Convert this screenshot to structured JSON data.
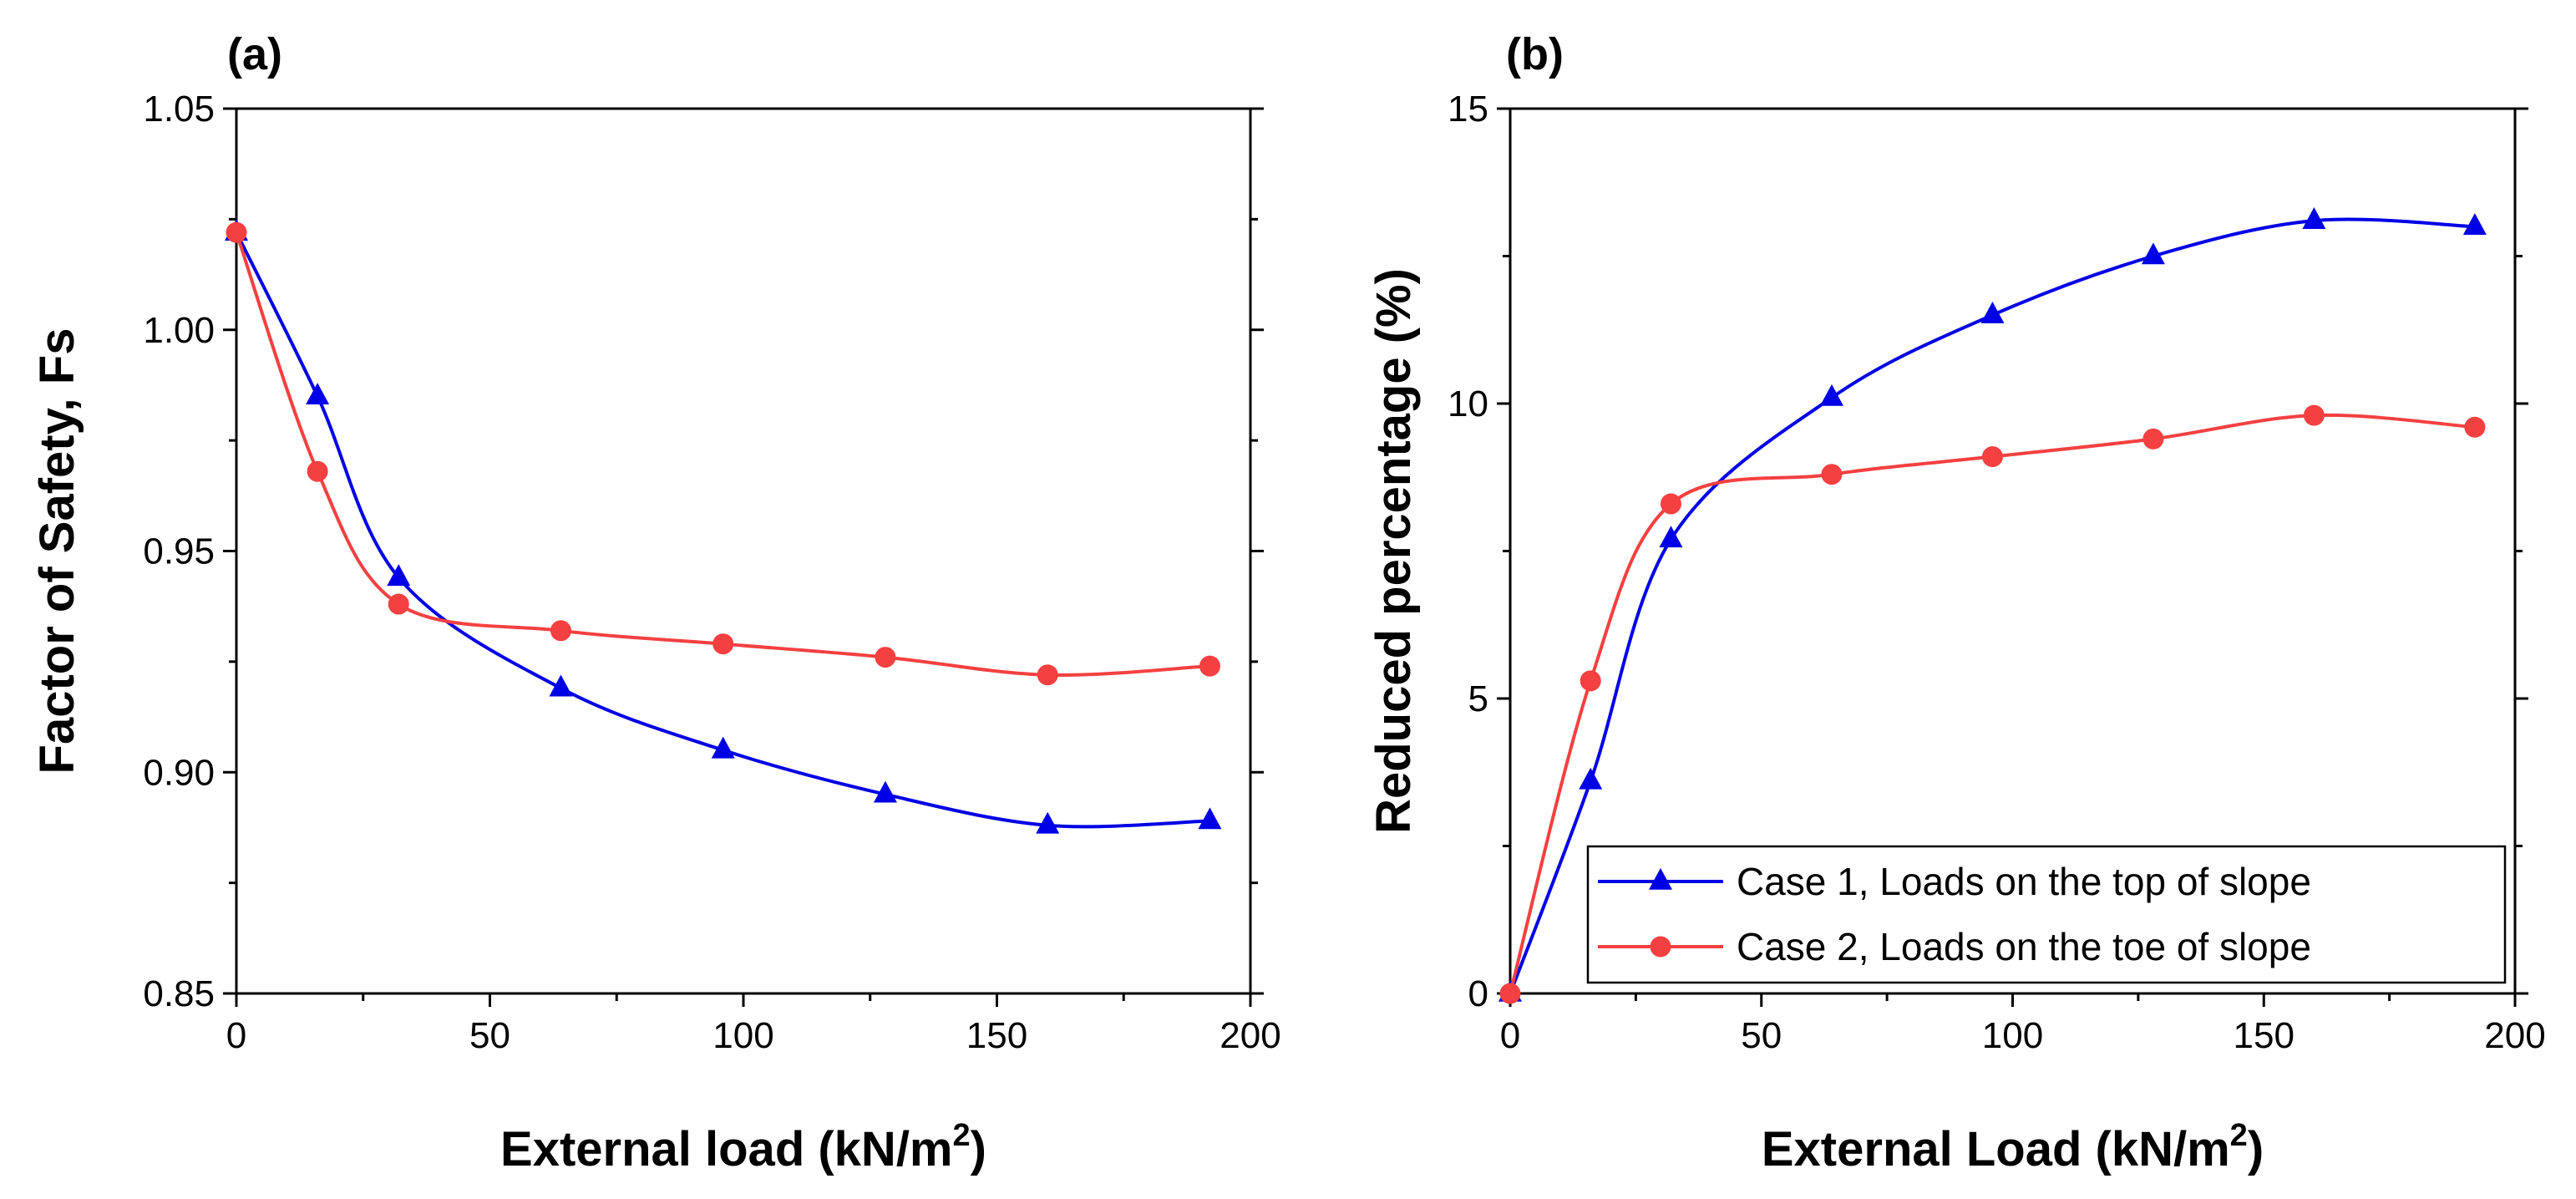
{
  "chart_data": [
    {
      "type": "line",
      "panel_label": "(a)",
      "title": "",
      "xlabel": "External load (kN/m",
      "xlabel_sup": "2",
      "xlabel_end": ")",
      "ylabel": "Factor of Safety, Fs",
      "xlim": [
        0,
        200
      ],
      "ylim": [
        0.85,
        1.05
      ],
      "xticks": [
        0,
        50,
        100,
        150,
        200
      ],
      "yticks": [
        0.85,
        0.9,
        0.95,
        1.0,
        1.05
      ],
      "xtick_labels": [
        "0",
        "50",
        "100",
        "150",
        "200"
      ],
      "ytick_labels": [
        "0.85",
        "0.90",
        "0.95",
        "1.00",
        "1.05"
      ],
      "grid": false,
      "series": [
        {
          "name": "Case 1, Loads on the top of slope",
          "color": "#0000e6",
          "marker": "triangle",
          "x": [
            0,
            16,
            32,
            64,
            96,
            128,
            160,
            192
          ],
          "values": [
            1.022,
            0.985,
            0.944,
            0.919,
            0.905,
            0.895,
            0.888,
            0.889
          ]
        },
        {
          "name": "Case 2, Loads on the toe of slope",
          "color": "#f44040",
          "marker": "circle",
          "x": [
            0,
            16,
            32,
            64,
            96,
            128,
            160,
            192
          ],
          "values": [
            1.022,
            0.968,
            0.938,
            0.932,
            0.929,
            0.926,
            0.922,
            0.924
          ]
        }
      ]
    },
    {
      "type": "line",
      "panel_label": "(b)",
      "title": "",
      "xlabel": "External Load (kN/m",
      "xlabel_sup": "2",
      "xlabel_end": ")",
      "ylabel": "Reduced percentage (%)",
      "xlim": [
        0,
        200
      ],
      "ylim": [
        0,
        15
      ],
      "xticks": [
        0,
        50,
        100,
        150,
        200
      ],
      "yticks": [
        0,
        5,
        10,
        15
      ],
      "xtick_labels": [
        "0",
        "50",
        "100",
        "150",
        "200"
      ],
      "ytick_labels": [
        "0",
        "5",
        "10",
        "15"
      ],
      "grid": false,
      "legend": "bottom-right",
      "series": [
        {
          "name": "Case 1, Loads on the top of slope",
          "color": "#0000e6",
          "marker": "triangle",
          "x": [
            0,
            16,
            32,
            64,
            96,
            128,
            160,
            192
          ],
          "values": [
            0,
            3.6,
            7.7,
            10.1,
            11.5,
            12.5,
            13.1,
            13.0
          ]
        },
        {
          "name": "Case 2, Loads on the toe of slope",
          "color": "#f44040",
          "marker": "circle",
          "x": [
            0,
            16,
            32,
            64,
            96,
            128,
            160,
            192
          ],
          "values": [
            0,
            5.3,
            8.3,
            8.8,
            9.1,
            9.4,
            9.8,
            9.6
          ]
        }
      ]
    }
  ]
}
